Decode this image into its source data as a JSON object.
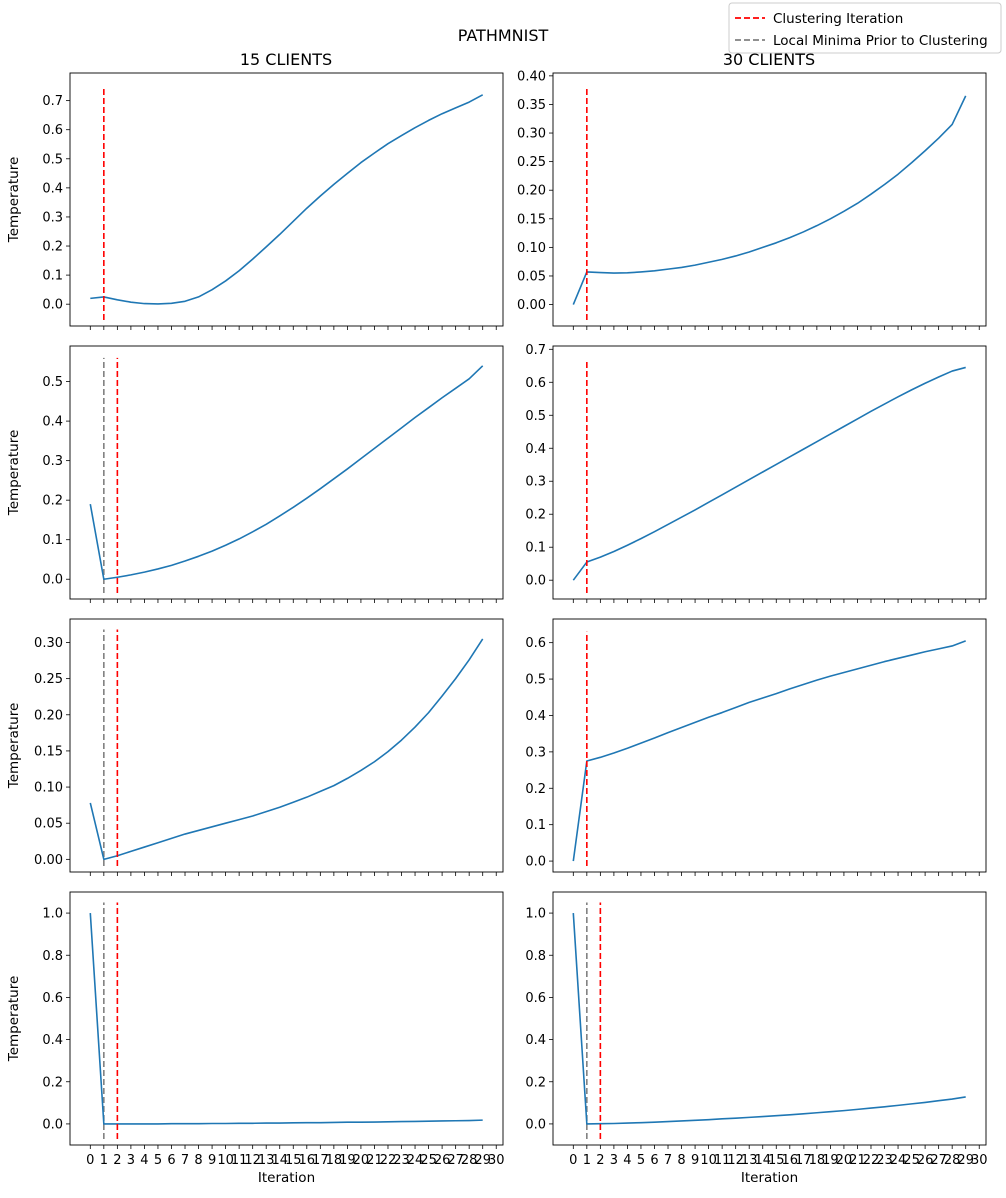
{
  "figure": {
    "suptitle": "PATHMNIST",
    "columns": [
      "15 CLIENTS",
      "30 CLIENTS"
    ],
    "xlabel": "Iteration",
    "ylabel": "Temperature"
  },
  "legend": {
    "placement": "top-right",
    "entries": [
      {
        "label": "Clustering Iteration",
        "color": "#ff0000",
        "style": "dashed"
      },
      {
        "label": "Local Minima Prior to Clustering",
        "color": "#808080",
        "style": "dashed"
      }
    ]
  },
  "colors": {
    "series": "#1f77b4",
    "clustering": "#ff0000",
    "local_minima": "#808080"
  },
  "chart_data": [
    {
      "type": "line",
      "title": "15 CLIENTS",
      "xlabel": "",
      "ylabel": "Temperature",
      "xlim": [
        -1.5,
        30.5
      ],
      "ylim": [
        -0.075,
        0.795
      ],
      "yticks": [
        0.0,
        0.1,
        0.2,
        0.3,
        0.4,
        0.5,
        0.6,
        0.7
      ],
      "ytick_decimals": 1,
      "x_tick_labels_shown": false,
      "clustering_iteration": 1,
      "clustering_line_top": 0.75,
      "local_minima_iteration": null,
      "series": [
        {
          "x": [
            0,
            1,
            2,
            3,
            4,
            5,
            6,
            7,
            8,
            9,
            10,
            11,
            12,
            13,
            14,
            15,
            16,
            17,
            18,
            19,
            20,
            21,
            22,
            23,
            24,
            25,
            26,
            27,
            28,
            29
          ],
          "values": [
            0.02,
            0.025,
            0.015,
            0.007,
            0.002,
            0.001,
            0.003,
            0.01,
            0.025,
            0.05,
            0.08,
            0.115,
            0.155,
            0.197,
            0.24,
            0.285,
            0.33,
            0.372,
            0.412,
            0.45,
            0.487,
            0.52,
            0.552,
            0.58,
            0.607,
            0.632,
            0.655,
            0.675,
            0.695,
            0.72
          ]
        }
      ]
    },
    {
      "type": "line",
      "title": "30 CLIENTS",
      "xlabel": "",
      "ylabel": "",
      "xlim": [
        -1.5,
        30.5
      ],
      "ylim": [
        -0.0375,
        0.405
      ],
      "yticks": [
        0.0,
        0.05,
        0.1,
        0.15,
        0.2,
        0.25,
        0.3,
        0.35,
        0.4
      ],
      "ytick_decimals": 2,
      "x_tick_labels_shown": false,
      "clustering_iteration": 1,
      "clustering_line_top": 0.38,
      "local_minima_iteration": null,
      "series": [
        {
          "x": [
            0,
            1,
            2,
            3,
            4,
            5,
            6,
            7,
            8,
            9,
            10,
            11,
            12,
            13,
            14,
            15,
            16,
            17,
            18,
            19,
            20,
            21,
            22,
            23,
            24,
            25,
            26,
            27,
            28,
            29
          ],
          "values": [
            0.0,
            0.057,
            0.056,
            0.055,
            0.0555,
            0.057,
            0.059,
            0.062,
            0.065,
            0.069,
            0.074,
            0.079,
            0.085,
            0.092,
            0.1,
            0.108,
            0.117,
            0.127,
            0.138,
            0.15,
            0.163,
            0.177,
            0.193,
            0.21,
            0.228,
            0.248,
            0.269,
            0.291,
            0.315,
            0.365
          ]
        }
      ]
    },
    {
      "type": "line",
      "title": "",
      "xlabel": "",
      "ylabel": "Temperature",
      "xlim": [
        -1.5,
        30.5
      ],
      "ylim": [
        -0.05,
        0.59
      ],
      "yticks": [
        0.0,
        0.1,
        0.2,
        0.3,
        0.4,
        0.5
      ],
      "ytick_decimals": 1,
      "x_tick_labels_shown": false,
      "clustering_iteration": 2,
      "clustering_line_top": 0.56,
      "local_minima_iteration": 1,
      "local_minima_line_top": 0.56,
      "series": [
        {
          "x": [
            0,
            1,
            2,
            3,
            4,
            5,
            6,
            7,
            8,
            9,
            10,
            11,
            12,
            13,
            14,
            15,
            16,
            17,
            18,
            19,
            20,
            21,
            22,
            23,
            24,
            25,
            26,
            27,
            28,
            29
          ],
          "values": [
            0.19,
            0.0,
            0.005,
            0.011,
            0.018,
            0.026,
            0.035,
            0.046,
            0.058,
            0.071,
            0.086,
            0.102,
            0.12,
            0.139,
            0.16,
            0.182,
            0.205,
            0.229,
            0.254,
            0.279,
            0.305,
            0.331,
            0.357,
            0.383,
            0.409,
            0.434,
            0.459,
            0.483,
            0.507,
            0.54
          ]
        }
      ]
    },
    {
      "type": "line",
      "title": "",
      "xlabel": "",
      "ylabel": "",
      "xlim": [
        -1.5,
        30.5
      ],
      "ylim": [
        -0.057,
        0.71
      ],
      "yticks": [
        0.0,
        0.1,
        0.2,
        0.3,
        0.4,
        0.5,
        0.6,
        0.7
      ],
      "ytick_decimals": 1,
      "x_tick_labels_shown": false,
      "clustering_iteration": 1,
      "clustering_line_top": 0.67,
      "local_minima_iteration": null,
      "series": [
        {
          "x": [
            0,
            1,
            2,
            3,
            4,
            5,
            6,
            7,
            8,
            9,
            10,
            11,
            12,
            13,
            14,
            15,
            16,
            17,
            18,
            19,
            20,
            21,
            22,
            23,
            24,
            25,
            26,
            27,
            28,
            29
          ],
          "values": [
            0.0,
            0.055,
            0.07,
            0.087,
            0.106,
            0.126,
            0.147,
            0.169,
            0.191,
            0.213,
            0.236,
            0.259,
            0.282,
            0.305,
            0.328,
            0.351,
            0.374,
            0.397,
            0.42,
            0.443,
            0.466,
            0.489,
            0.512,
            0.534,
            0.556,
            0.577,
            0.597,
            0.616,
            0.634,
            0.645
          ]
        }
      ]
    },
    {
      "type": "line",
      "title": "",
      "xlabel": "",
      "ylabel": "Temperature",
      "xlim": [
        -1.5,
        30.5
      ],
      "ylim": [
        -0.0175,
        0.3325
      ],
      "yticks": [
        0.0,
        0.05,
        0.1,
        0.15,
        0.2,
        0.25,
        0.3
      ],
      "ytick_decimals": 2,
      "x_tick_labels_shown": false,
      "clustering_iteration": 2,
      "clustering_line_top": 0.318,
      "local_minima_iteration": 1,
      "local_minima_line_top": 0.318,
      "series": [
        {
          "x": [
            0,
            1,
            2,
            3,
            4,
            5,
            6,
            7,
            8,
            9,
            10,
            11,
            12,
            13,
            14,
            15,
            16,
            17,
            18,
            19,
            20,
            21,
            22,
            23,
            24,
            25,
            26,
            27,
            28,
            29
          ],
          "values": [
            0.078,
            0.0,
            0.005,
            0.011,
            0.017,
            0.023,
            0.029,
            0.035,
            0.04,
            0.045,
            0.05,
            0.055,
            0.06,
            0.066,
            0.072,
            0.079,
            0.086,
            0.094,
            0.102,
            0.112,
            0.123,
            0.135,
            0.149,
            0.165,
            0.183,
            0.203,
            0.226,
            0.25,
            0.276,
            0.305
          ]
        }
      ]
    },
    {
      "type": "line",
      "title": "",
      "xlabel": "",
      "ylabel": "",
      "xlim": [
        -1.5,
        30.5
      ],
      "ylim": [
        -0.03,
        0.665
      ],
      "yticks": [
        0.0,
        0.1,
        0.2,
        0.3,
        0.4,
        0.5,
        0.6
      ],
      "ytick_decimals": 1,
      "x_tick_labels_shown": false,
      "clustering_iteration": 1,
      "clustering_line_top": 0.63,
      "local_minima_iteration": null,
      "series": [
        {
          "x": [
            0,
            1,
            2,
            3,
            4,
            5,
            6,
            7,
            8,
            9,
            10,
            11,
            12,
            13,
            14,
            15,
            16,
            17,
            18,
            19,
            20,
            21,
            22,
            23,
            24,
            25,
            26,
            27,
            28,
            29
          ],
          "values": [
            0.0,
            0.275,
            0.285,
            0.297,
            0.31,
            0.324,
            0.338,
            0.353,
            0.367,
            0.381,
            0.395,
            0.408,
            0.422,
            0.436,
            0.448,
            0.46,
            0.473,
            0.485,
            0.497,
            0.508,
            0.518,
            0.528,
            0.538,
            0.548,
            0.557,
            0.566,
            0.575,
            0.583,
            0.591,
            0.605
          ]
        }
      ]
    },
    {
      "type": "line",
      "title": "",
      "xlabel": "Iteration",
      "ylabel": "Temperature",
      "xlim": [
        -1.5,
        30.5
      ],
      "ylim": [
        -0.1,
        1.1
      ],
      "yticks": [
        0.0,
        0.2,
        0.4,
        0.6,
        0.8,
        1.0
      ],
      "ytick_decimals": 1,
      "x_tick_labels_shown": true,
      "xticks": [
        0,
        1,
        2,
        3,
        4,
        5,
        6,
        7,
        8,
        9,
        10,
        11,
        12,
        13,
        14,
        15,
        16,
        17,
        18,
        19,
        20,
        21,
        22,
        23,
        24,
        25,
        26,
        27,
        28,
        29,
        30
      ],
      "clustering_iteration": 2,
      "clustering_line_top": 1.05,
      "local_minima_iteration": 1,
      "local_minima_line_top": 1.05,
      "series": [
        {
          "x": [
            0,
            1,
            2,
            3,
            4,
            5,
            6,
            7,
            8,
            9,
            10,
            11,
            12,
            13,
            14,
            15,
            16,
            17,
            18,
            19,
            20,
            21,
            22,
            23,
            24,
            25,
            26,
            27,
            28,
            29
          ],
          "values": [
            1.0,
            0.0,
            0.0,
            0.0,
            0.0,
            0.0,
            0.001,
            0.001,
            0.001,
            0.002,
            0.002,
            0.003,
            0.003,
            0.004,
            0.004,
            0.005,
            0.006,
            0.006,
            0.007,
            0.008,
            0.008,
            0.009,
            0.01,
            0.011,
            0.012,
            0.013,
            0.014,
            0.015,
            0.016,
            0.018
          ]
        }
      ]
    },
    {
      "type": "line",
      "title": "",
      "xlabel": "Iteration",
      "ylabel": "",
      "xlim": [
        -1.5,
        30.5
      ],
      "ylim": [
        -0.1,
        1.1
      ],
      "yticks": [
        0.0,
        0.2,
        0.4,
        0.6,
        0.8,
        1.0
      ],
      "ytick_decimals": 1,
      "x_tick_labels_shown": true,
      "xticks": [
        0,
        1,
        2,
        3,
        4,
        5,
        6,
        7,
        8,
        9,
        10,
        11,
        12,
        13,
        14,
        15,
        16,
        17,
        18,
        19,
        20,
        21,
        22,
        23,
        24,
        25,
        26,
        27,
        28,
        29,
        30
      ],
      "clustering_iteration": 2,
      "clustering_line_top": 1.05,
      "local_minima_iteration": 1,
      "local_minima_line_top": 1.05,
      "series": [
        {
          "x": [
            0,
            1,
            2,
            3,
            4,
            5,
            6,
            7,
            8,
            9,
            10,
            11,
            12,
            13,
            14,
            15,
            16,
            17,
            18,
            19,
            20,
            21,
            22,
            23,
            24,
            25,
            26,
            27,
            28,
            29
          ],
          "values": [
            1.0,
            0.0,
            0.001,
            0.002,
            0.004,
            0.006,
            0.008,
            0.011,
            0.014,
            0.017,
            0.02,
            0.024,
            0.027,
            0.031,
            0.035,
            0.039,
            0.043,
            0.048,
            0.053,
            0.058,
            0.063,
            0.069,
            0.075,
            0.081,
            0.088,
            0.095,
            0.102,
            0.11,
            0.118,
            0.128
          ]
        }
      ]
    }
  ]
}
